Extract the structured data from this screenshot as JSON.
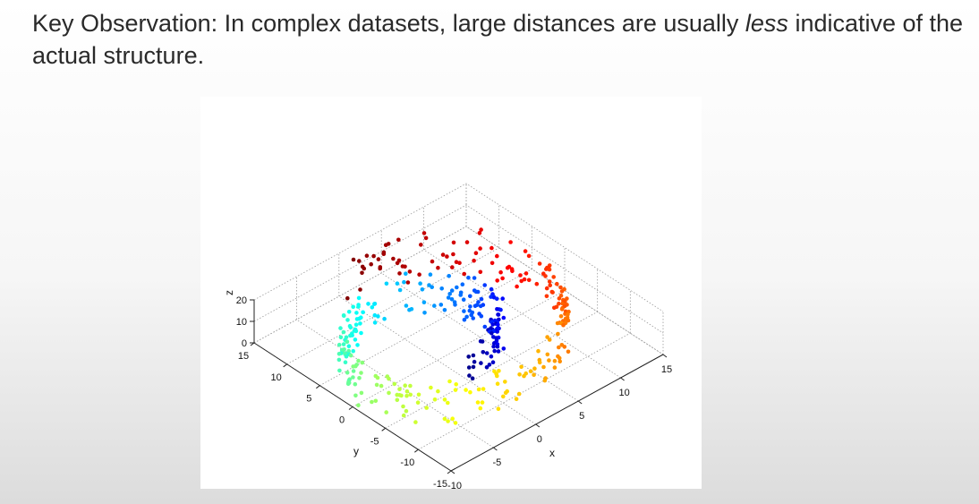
{
  "slide": {
    "title_before": "Key Observation: In complex datasets, large distances are usually ",
    "title_emphasis": "less",
    "title_after": " indicative of the actual structure."
  },
  "colors": {
    "grid": "#9a9a9a",
    "axis": "#222222",
    "colormap": [
      "#00008f",
      "#0000ff",
      "#0080ff",
      "#00ffff",
      "#80ff80",
      "#ffff00",
      "#ff8000",
      "#ff0000",
      "#800000"
    ]
  },
  "chart_data": {
    "type": "scatter",
    "subtype": "3d-swiss-roll",
    "title": "",
    "xlabel": "x",
    "ylabel": "y",
    "zlabel": "z",
    "xlim": [
      -10,
      15
    ],
    "ylim": [
      -15,
      15
    ],
    "zlim": [
      0,
      20
    ],
    "x_ticks": [
      "-10",
      "-5",
      "0",
      "5",
      "10",
      "15"
    ],
    "y_ticks": [
      "-15",
      "-10",
      "-5",
      "0",
      "5",
      "10",
      "15"
    ],
    "z_ticks": [
      "0",
      "10",
      "20"
    ],
    "grid": true,
    "legend": "none",
    "colormap": "jet (colour follows position along the roll)",
    "roll": {
      "t_range": [
        4.71,
        14.14
      ],
      "x_formula": "t*cos(t)",
      "y_formula": "t*sin(t)",
      "z_range": [
        0,
        21
      ],
      "point_count": 400
    }
  }
}
